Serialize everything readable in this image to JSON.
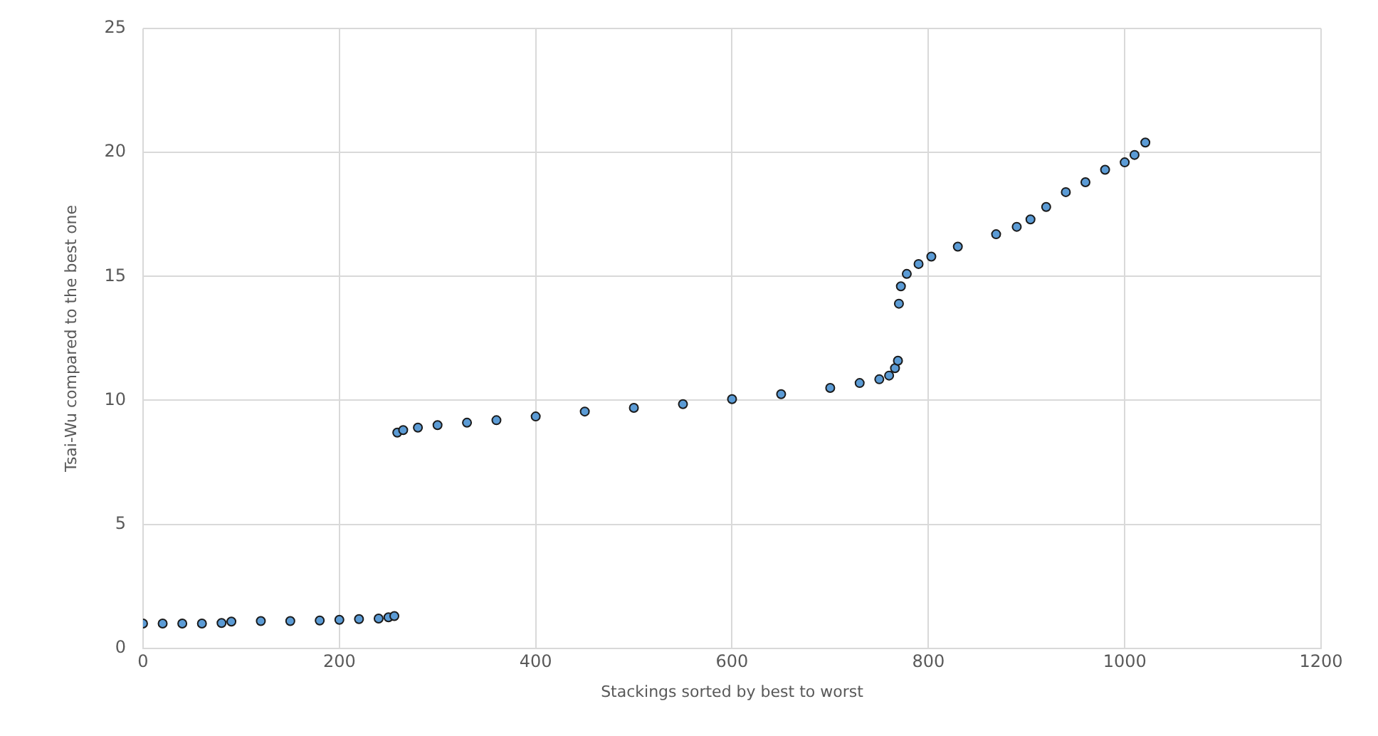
{
  "chart_data": {
    "type": "scatter",
    "xlabel": "Stackings sorted by best to worst",
    "ylabel": "Tsai-Wu compared to the best one",
    "x": [
      0,
      20,
      40,
      60,
      80,
      90,
      120,
      150,
      180,
      200,
      220,
      240,
      250,
      256,
      259,
      265,
      280,
      300,
      330,
      360,
      400,
      450,
      500,
      550,
      600,
      650,
      700,
      730,
      750,
      760,
      766,
      769,
      770,
      772,
      778,
      790,
      803,
      830,
      869,
      890,
      904,
      920,
      940,
      960,
      980,
      1000,
      1010,
      1021
    ],
    "values": [
      1.0,
      1.0,
      1.0,
      1.0,
      1.02,
      1.08,
      1.1,
      1.1,
      1.12,
      1.15,
      1.18,
      1.2,
      1.25,
      1.3,
      8.7,
      8.8,
      8.9,
      9.0,
      9.1,
      9.2,
      9.35,
      9.55,
      9.7,
      9.85,
      10.05,
      10.25,
      10.5,
      10.7,
      10.85,
      11.0,
      11.3,
      11.6,
      13.9,
      14.6,
      15.1,
      15.5,
      15.8,
      16.2,
      16.7,
      17.0,
      17.3,
      17.8,
      18.4,
      18.8,
      19.3,
      19.6,
      19.9,
      20.4
    ],
    "color": "#5b9bd5",
    "marker": "circle",
    "grid": true,
    "legend": false,
    "xlim": [
      0,
      1200
    ],
    "xticks": [
      0,
      200,
      400,
      600,
      800,
      1000,
      1200
    ],
    "ylim": [
      0,
      25
    ],
    "yticks": [
      0,
      5,
      10,
      15,
      20,
      25
    ]
  }
}
